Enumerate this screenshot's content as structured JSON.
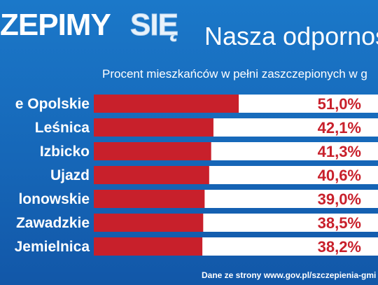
{
  "header": {
    "logo_text": "ZEPIMY",
    "logo_suffix": "SIĘ",
    "title": "Nasza odpornoś"
  },
  "subtitle": "Procent mieszkańców w pełni zaszczepionych w g",
  "source": "Dane ze strony www.gov.pl/szczepienia-gmi",
  "colors": {
    "background": "#1667b8",
    "bar": "#c8202b",
    "track": "#ffffff",
    "value_text": "#c8202b",
    "label_text": "#ffffff"
  },
  "chart_data": {
    "type": "bar",
    "orientation": "horizontal",
    "categories": [
      "e Opolskie",
      "Leśnica",
      "Izbicko",
      "Ujazd",
      "lonowskie",
      "Zawadzkie",
      "Jemielnica"
    ],
    "values": [
      51.0,
      42.1,
      41.3,
      40.6,
      39.0,
      38.5,
      38.2
    ],
    "value_labels": [
      "51,0%",
      "42,1%",
      "41,3%",
      "40,6%",
      "39,0%",
      "38,5%",
      "38,2%"
    ],
    "xlim": [
      0,
      100
    ]
  }
}
